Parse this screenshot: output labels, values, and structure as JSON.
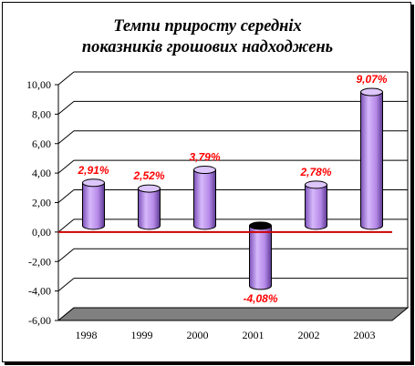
{
  "chart_data": {
    "type": "bar",
    "title_lines": [
      "Темпи приросту середніх",
      "показників грошових надходжень"
    ],
    "categories": [
      "1998",
      "1999",
      "2000",
      "2001",
      "2002",
      "2003"
    ],
    "values": [
      2.91,
      2.52,
      3.79,
      -4.08,
      2.78,
      9.07
    ],
    "data_labels": [
      "2,91%",
      "2,52%",
      "3,79%",
      "-4,08%",
      "2,78%",
      "9,07%"
    ],
    "yticks": [
      "-6,00",
      "-4,00",
      "-2,00",
      "0,00",
      "2,00",
      "4,00",
      "6,00",
      "8,00",
      "10,00"
    ],
    "ylim": [
      -6,
      10
    ],
    "grid": true,
    "bar_shape": "cylinder",
    "bar_color": "#c8a0f0",
    "label_color": "#ff0000",
    "zero_line_color": "#cc0000",
    "floor_color": "#808080"
  }
}
